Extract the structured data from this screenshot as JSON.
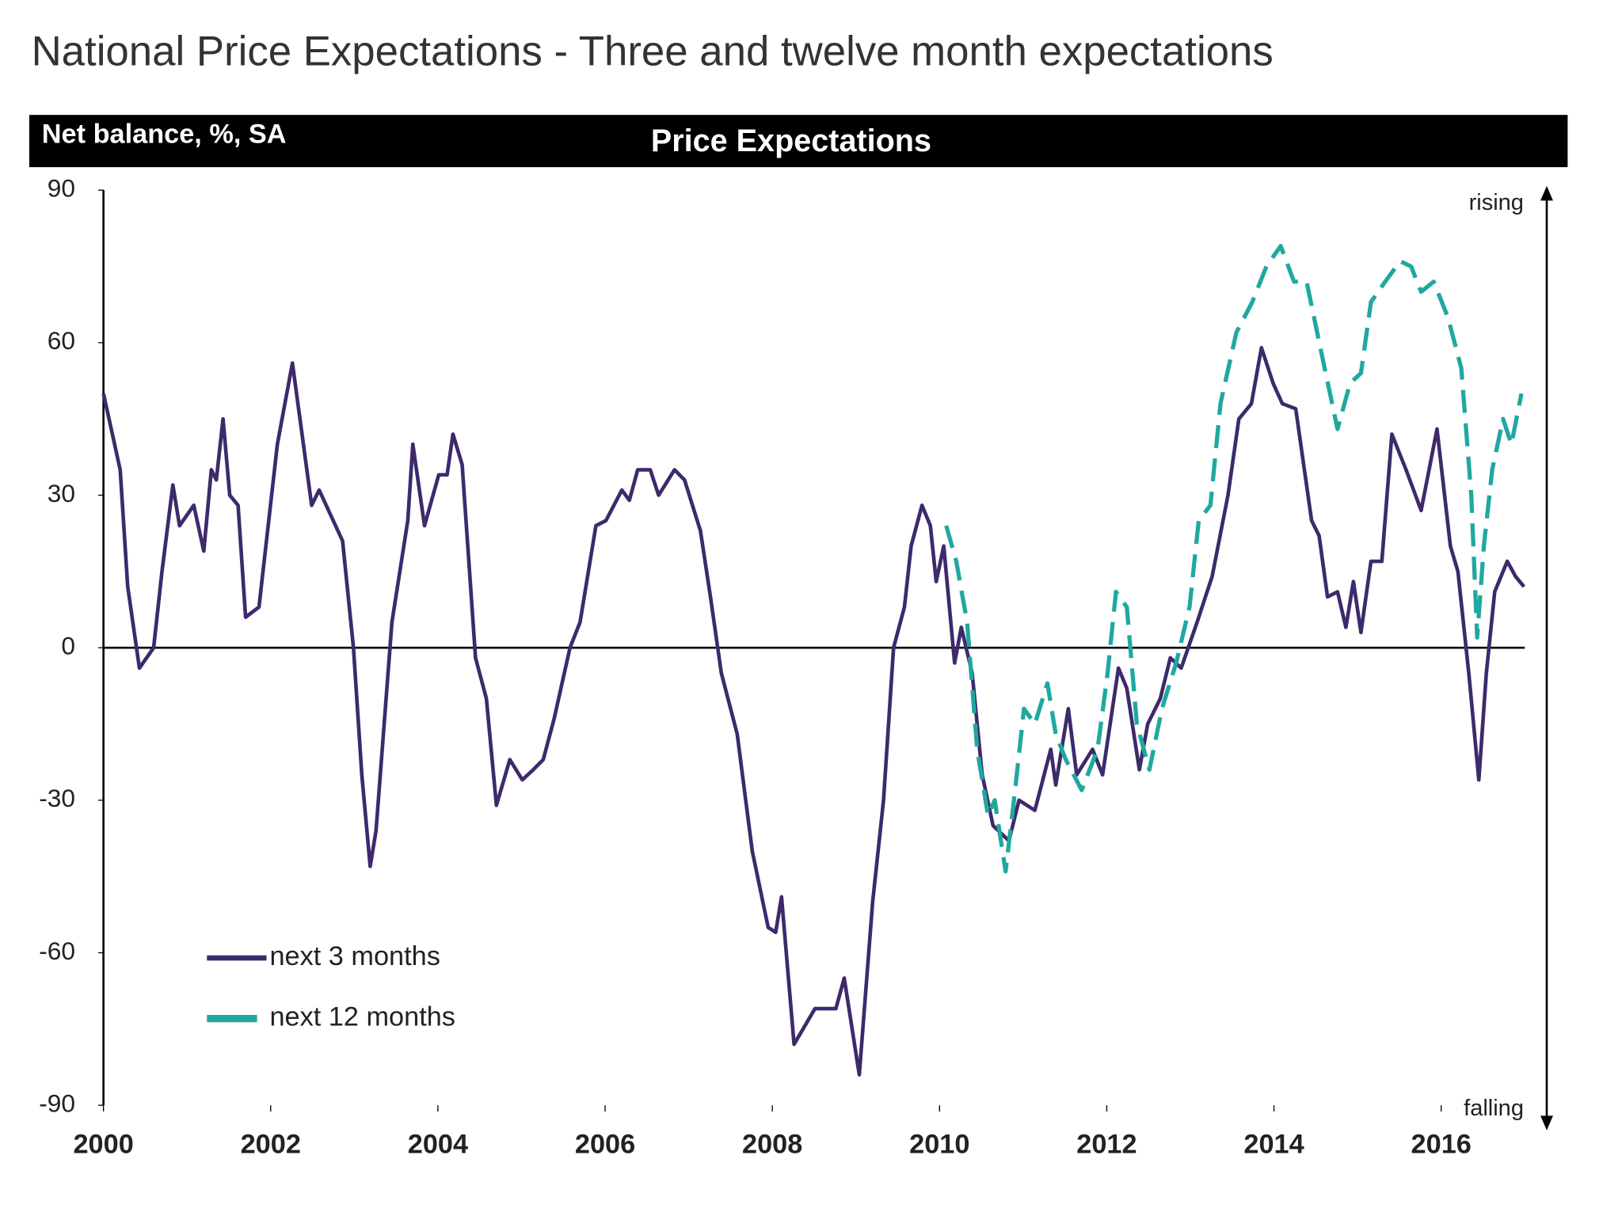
{
  "chart_data": {
    "type": "line",
    "title": "National Price Expectations - Three and twelve month expectations",
    "header_left": "Net balance, %, SA",
    "header_center": "Price Expectations",
    "annotations": [
      "rising",
      "falling"
    ],
    "xlim": [
      2000,
      2017
    ],
    "xticks": [
      2000,
      2002,
      2004,
      2006,
      2008,
      2010,
      2012,
      2014,
      2016
    ],
    "ylim": [
      -90,
      90
    ],
    "yticks": [
      -90,
      -60,
      -30,
      0,
      30,
      60,
      90
    ],
    "legend": "lower left",
    "series": [
      {
        "name": "next 3 months",
        "color": "#3d2a6b",
        "style": "solid",
        "x": [
          2000.0,
          2000.2,
          2000.29,
          2000.43,
          2000.6,
          2000.7,
          2000.83,
          2000.91,
          2001.08,
          2001.2,
          2001.29,
          2001.35,
          2001.43,
          2001.51,
          2001.61,
          2001.7,
          2001.86,
          2002.08,
          2002.26,
          2002.49,
          2002.58,
          2002.86,
          2002.99,
          2003.09,
          2003.19,
          2003.26,
          2003.45,
          2003.64,
          2003.7,
          2003.84,
          2004.01,
          2004.11,
          2004.18,
          2004.29,
          2004.45,
          2004.58,
          2004.7,
          2004.86,
          2005.01,
          2005.14,
          2005.26,
          2005.39,
          2005.58,
          2005.7,
          2005.89,
          2006.01,
          2006.2,
          2006.29,
          2006.39,
          2006.54,
          2006.64,
          2006.83,
          2006.95,
          2007.14,
          2007.26,
          2007.39,
          2007.58,
          2007.76,
          2007.95,
          2008.04,
          2008.11,
          2008.26,
          2008.51,
          2008.76,
          2008.86,
          2009.04,
          2009.2,
          2009.33,
          2009.45,
          2009.58,
          2009.66,
          2009.79,
          2009.89,
          2009.96,
          2010.05,
          2010.18,
          2010.26,
          2010.39,
          2010.51,
          2010.64,
          2010.83,
          2010.95,
          2011.14,
          2011.33,
          2011.39,
          2011.54,
          2011.64,
          2011.83,
          2011.95,
          2012.14,
          2012.24,
          2012.39,
          2012.49,
          2012.64,
          2012.76,
          2012.89,
          2013.08,
          2013.26,
          2013.45,
          2013.58,
          2013.73,
          2013.85,
          2013.99,
          2014.1,
          2014.26,
          2014.45,
          2014.54,
          2014.64,
          2014.76,
          2014.86,
          2014.95,
          2015.04,
          2015.16,
          2015.29,
          2015.41,
          2015.58,
          2015.76,
          2015.95,
          2016.11,
          2016.2,
          2016.33,
          2016.45,
          2016.54,
          2016.64,
          2016.79,
          2016.89,
          2016.99
        ],
        "values": [
          50,
          35,
          12,
          -4,
          0,
          15,
          32,
          24,
          28,
          19,
          35,
          33,
          45,
          30,
          28,
          6,
          8,
          40,
          56,
          28,
          31,
          21,
          0,
          -25,
          -43,
          -36,
          5,
          25,
          40,
          24,
          34,
          34,
          42,
          36,
          -2,
          -10,
          -31,
          -22,
          -26,
          -24,
          -22,
          -14,
          0,
          5,
          24,
          25,
          31,
          29,
          35,
          35,
          30,
          35,
          33,
          23,
          10,
          -5,
          -17,
          -40,
          -55,
          -56,
          -49,
          -78,
          -71,
          -71,
          -65,
          -84,
          -50,
          -30,
          0,
          8,
          20,
          28,
          24,
          13,
          20,
          -3,
          4,
          -5,
          -25,
          -35,
          -38,
          -30,
          -32,
          -20,
          -27,
          -12,
          -25,
          -20,
          -25,
          -4,
          -8,
          -24,
          -15,
          -10,
          -2,
          -4,
          5,
          14,
          30,
          45,
          48,
          59,
          52,
          48,
          47,
          25,
          22,
          10,
          11,
          4,
          13,
          3,
          17,
          17,
          42,
          35,
          27,
          43,
          20,
          15,
          -5,
          -26,
          -5,
          11,
          17,
          14,
          12
        ]
      },
      {
        "name": "next 12 months",
        "color": "#1fa8a0",
        "style": "dashed",
        "x": [
          2010.08,
          2010.2,
          2010.33,
          2010.45,
          2010.58,
          2010.66,
          2010.79,
          2010.89,
          2011.01,
          2011.14,
          2011.29,
          2011.39,
          2011.51,
          2011.7,
          2011.89,
          2012.01,
          2012.11,
          2012.24,
          2012.36,
          2012.51,
          2012.66,
          2012.83,
          2012.99,
          2013.1,
          2013.24,
          2013.36,
          2013.55,
          2013.74,
          2013.91,
          2014.08,
          2014.24,
          2014.39,
          2014.58,
          2014.76,
          2014.91,
          2015.04,
          2015.16,
          2015.33,
          2015.51,
          2015.64,
          2015.76,
          2015.91,
          2016.08,
          2016.24,
          2016.36,
          2016.43,
          2016.51,
          2016.61,
          2016.74,
          2016.84,
          2016.96
        ],
        "values": [
          24,
          17,
          5,
          -20,
          -33,
          -30,
          -44,
          -30,
          -12,
          -15,
          -7,
          -17,
          -22,
          -28,
          -20,
          -5,
          11,
          8,
          -15,
          -24,
          -12,
          -3,
          8,
          25,
          28,
          48,
          62,
          68,
          75,
          79,
          72,
          72,
          57,
          43,
          52,
          54,
          68,
          72,
          76,
          75,
          70,
          72,
          65,
          55,
          30,
          2,
          20,
          35,
          45,
          40,
          50
        ]
      }
    ]
  }
}
